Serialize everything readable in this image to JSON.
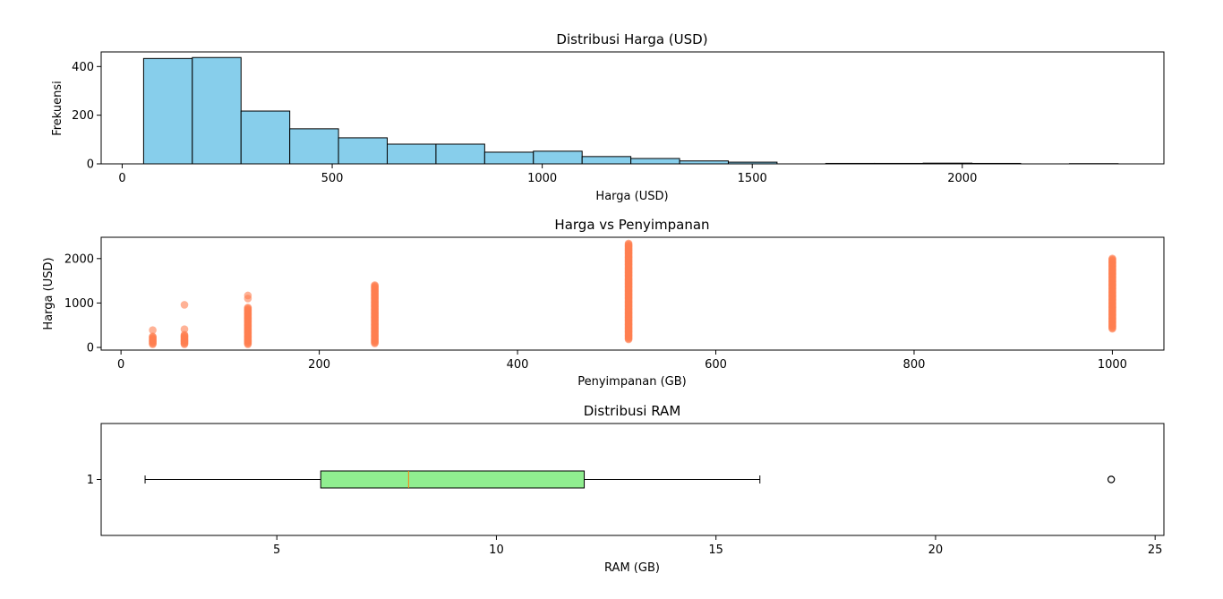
{
  "chart_data": [
    {
      "type": "histogram",
      "title": "Distribusi Harga (USD)",
      "xlabel": "Harga (USD)",
      "ylabel": "Frekuensi",
      "xlim": [
        -50,
        2480
      ],
      "ylim": [
        0,
        460
      ],
      "xticks": [
        0,
        500,
        1000,
        1500,
        2000
      ],
      "yticks": [
        0,
        200,
        400
      ],
      "color": "#87ceeb",
      "edgecolor": "#000000",
      "bin_edges": [
        51,
        167,
        283,
        399,
        515,
        631,
        747,
        863,
        979,
        1095,
        1211,
        1327,
        1443,
        1559,
        1675,
        1791,
        1907,
        2023,
        2139,
        2255,
        2371
      ],
      "counts": [
        433,
        437,
        217,
        144,
        107,
        81,
        81,
        48,
        52,
        30,
        22,
        12,
        7,
        0,
        2,
        2,
        3,
        2,
        0,
        1
      ]
    },
    {
      "type": "scatter",
      "title": "Harga vs Penyimpanan",
      "xlabel": "Penyimpanan (GB)",
      "ylabel": "Harga (USD)",
      "xlim": [
        -20,
        1052
      ],
      "ylim": [
        -60,
        2480
      ],
      "xticks": [
        0,
        200,
        400,
        600,
        800,
        1000
      ],
      "yticks": [
        0,
        1000,
        2000
      ],
      "color": "#ff7f50",
      "series": [
        {
          "x": 32,
          "y_min": 70,
          "y_max": 250,
          "extra_y": [
            390
          ]
        },
        {
          "x": 64,
          "y_min": 70,
          "y_max": 300,
          "extra_y": [
            410,
            960
          ]
        },
        {
          "x": 128,
          "y_min": 70,
          "y_max": 900,
          "extra_y": [
            1100,
            1170
          ]
        },
        {
          "x": 256,
          "y_min": 90,
          "y_max": 1420,
          "extra_y": []
        },
        {
          "x": 512,
          "y_min": 180,
          "y_max": 2340,
          "extra_y": []
        },
        {
          "x": 1000,
          "y_min": 420,
          "y_max": 2020,
          "extra_y": []
        }
      ]
    },
    {
      "type": "box",
      "title": "Distribusi RAM",
      "xlabel": "RAM (GB)",
      "xlim": [
        1.0,
        25.2
      ],
      "xticks": [
        5,
        10,
        15,
        20,
        25
      ],
      "yticks": [
        "1"
      ],
      "whisker_low": 2,
      "q1": 6,
      "median": 8,
      "q3": 12,
      "whisker_high": 16,
      "outliers": [
        24
      ],
      "box_color": "#90ee90",
      "median_color": "#ff7f0e"
    }
  ]
}
